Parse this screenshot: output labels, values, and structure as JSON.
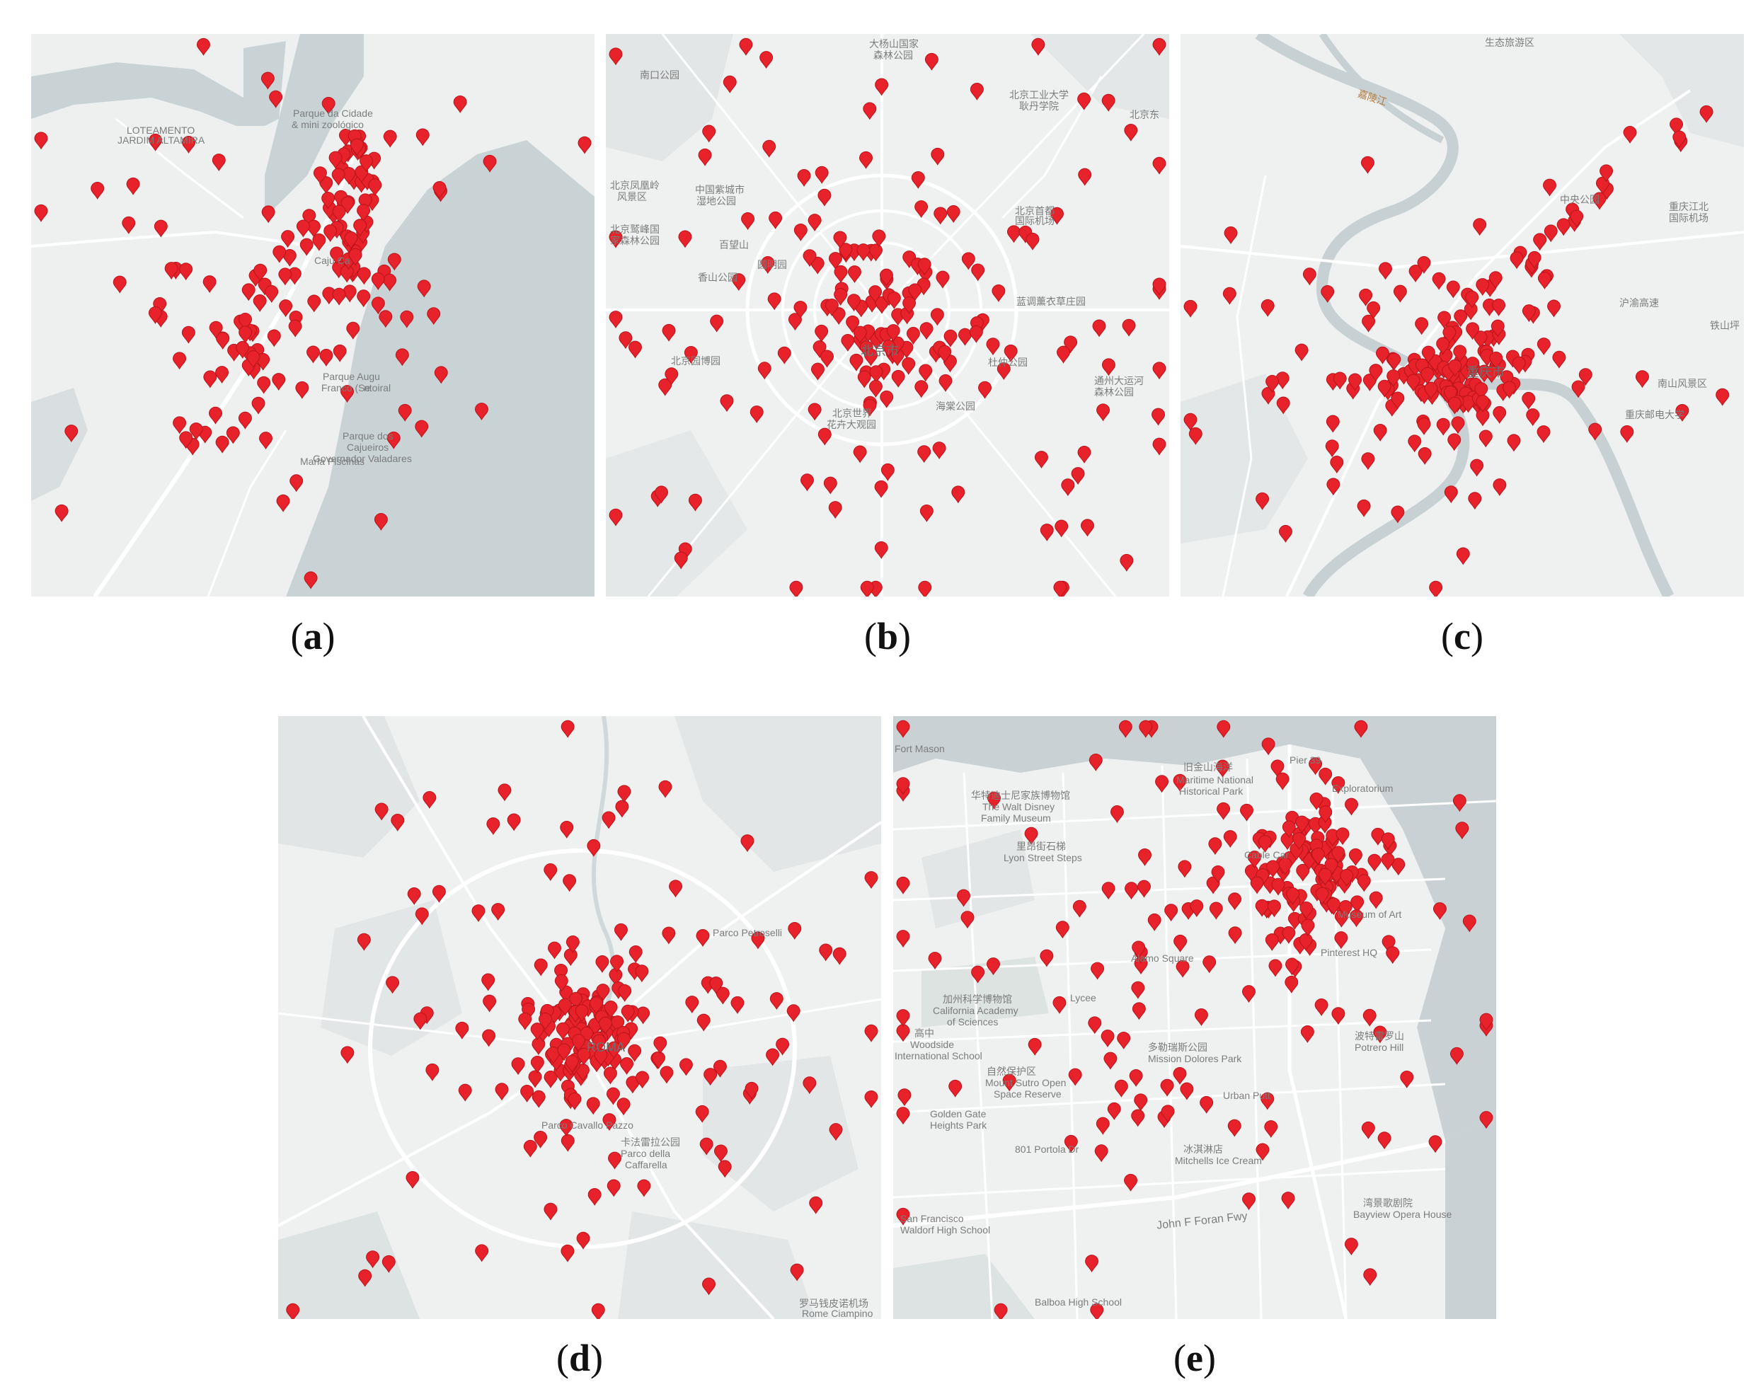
{
  "figure": {
    "panels": [
      {
        "id": "a",
        "caption_left": "(",
        "caption_letter": "a",
        "caption_right": ")",
        "labels": [
          "LOTEAMENTO",
          "JARDIM ALTAMIRA",
          "Parque da Cidade",
          "& mini zoológico",
          "Caju Ca",
          "Parque Augu",
          "Franco (Se",
          "ntoiral",
          "Parque dos",
          "Cajueiros",
          "Governador Valadares",
          "Maria Piscinas"
        ],
        "marker_count": 170,
        "marker_color": "#e8222a"
      },
      {
        "id": "b",
        "caption_left": "(",
        "caption_letter": "b",
        "caption_right": ")",
        "labels": [
          "南口公园",
          "大杨山国家",
          "森林公园",
          "北京工业大学",
          "耿丹学院",
          "北京凤凰岭",
          "风景区",
          "中国紫城市",
          "湿地公园",
          "北京鹫峰国",
          "家森林公园",
          "百望山",
          "圆明园",
          "香山公园",
          "北京首都",
          "国际机场",
          "蓝调薰衣草庄园",
          "北京东",
          "北京园博园",
          "杜仲公园",
          "北京世界",
          "花卉大观园",
          "海棠公园",
          "通州大运河",
          "森林公园",
          "北京市"
        ],
        "marker_count": 190,
        "marker_color": "#e8222a"
      },
      {
        "id": "c",
        "caption_left": "(",
        "caption_letter": "c",
        "caption_right": ")",
        "labels": [
          "生态旅游区",
          "嘉陵江",
          "中央公园",
          "重庆江北",
          "国际机场",
          "重庆市",
          "沪渝高速",
          "铁山坪",
          "南山风景区",
          "重庆邮电大学"
        ],
        "marker_count": 200,
        "marker_color": "#e8222a"
      },
      {
        "id": "d",
        "caption_left": "(",
        "caption_letter": "d",
        "caption_right": ")",
        "labels": [
          "Parco Petroselli",
          "ROMA",
          "Parco Cavallo Pazzo",
          "卡法雷拉公园",
          "Parco della",
          "Caffarella",
          "罗马钱皮诺机场",
          "Rome Ciampino"
        ],
        "marker_count": 210,
        "marker_color": "#e8222a"
      },
      {
        "id": "e",
        "caption_left": "(",
        "caption_letter": "e",
        "caption_right": ")",
        "labels": [
          "Fort Mason",
          "Pier 39",
          "旧金山海洋",
          "Maritime National",
          "Historical Park",
          "华特迪士尼家族博物馆",
          "The Walt Disney",
          "Family Museum",
          "里昂街石梯",
          "Lyon Street Steps",
          "Cable Car",
          "Exploratorium",
          "Museum of Art",
          "Pinterest HQ",
          "Alamo Square",
          "Lycee",
          "加州科学博物馆",
          "California Academy",
          "of Sciences",
          "高中",
          "Woodside",
          "International School",
          "多勒瑞斯公园",
          "Mission Dolores Park",
          "自然保护区",
          "Mount Sutro Open",
          "Space Reserve",
          "Urban Putt",
          "波特雷罗山",
          "Potrero Hill",
          "Golden Gate",
          "Heights Park",
          "801 Portola Dr",
          "冰淇淋店",
          "Mitchells Ice Cream",
          "San Francisco",
          "Waldorf High School",
          "John F Foran Fwy",
          "湾景歌剧院",
          "Bayview Opera House",
          "Balboa High School"
        ],
        "marker_count": 230,
        "marker_color": "#e8222a"
      }
    ]
  }
}
